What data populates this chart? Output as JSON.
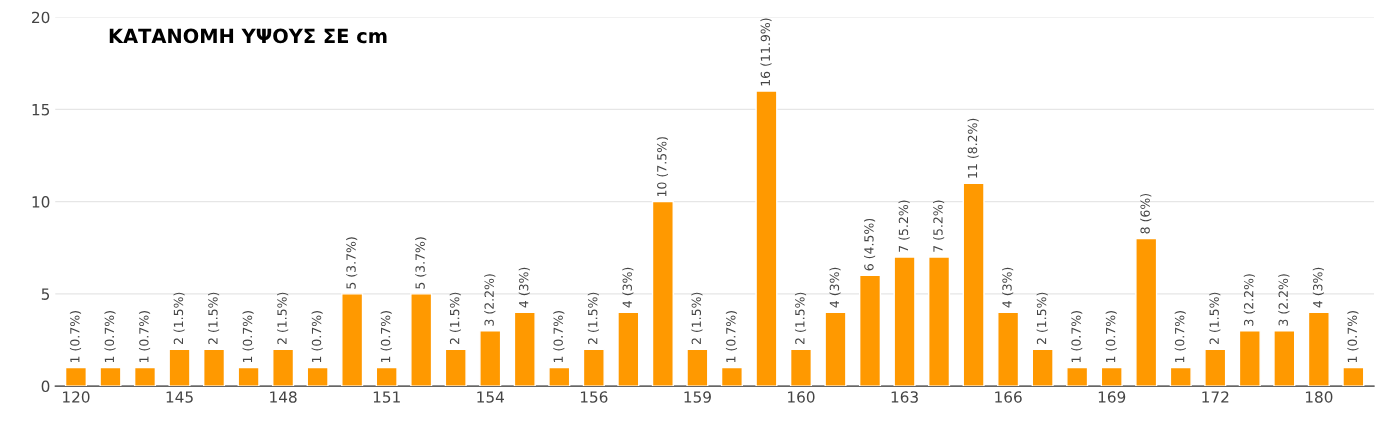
{
  "chart_data": {
    "type": "bar",
    "title": "ΚΑΤΑΝΟΜΗ ΥΨΟΥΣ ΣΕ cm",
    "categories": [
      "120",
      null,
      null,
      "145",
      null,
      null,
      "148",
      null,
      null,
      "151",
      null,
      null,
      "154",
      null,
      null,
      "156",
      null,
      null,
      "159",
      null,
      null,
      "160",
      null,
      null,
      "163",
      null,
      null,
      "166",
      null,
      null,
      "169",
      null,
      null,
      "172",
      null,
      null,
      "180",
      null
    ],
    "values": [
      1,
      1,
      1,
      2,
      2,
      1,
      2,
      1,
      5,
      1,
      5,
      2,
      3,
      4,
      1,
      2,
      4,
      10,
      2,
      1,
      16,
      2,
      4,
      6,
      7,
      7,
      11,
      4,
      2,
      1,
      1,
      8,
      1,
      2,
      3,
      3,
      4,
      1
    ],
    "value_labels": [
      "1 (0.7%)",
      "1 (0.7%)",
      "1 (0.7%)",
      "2 (1.5%)",
      "2 (1.5%)",
      "1 (0.7%)",
      "2 (1.5%)",
      "1 (0.7%)",
      "5 (3.7%)",
      "1 (0.7%)",
      "5 (3.7%)",
      "2 (1.5%)",
      "3 (2.2%)",
      "4 (3%)",
      "1 (0.7%)",
      "2 (1.5%)",
      "4 (3%)",
      "10 (7.5%)",
      "2 (1.5%)",
      "1 (0.7%)",
      "16 (11.9%)",
      "2 (1.5%)",
      "4 (3%)",
      "6 (4.5%)",
      "7 (5.2%)",
      "7 (5.2%)",
      "11 (8.2%)",
      "4 (3%)",
      "2 (1.5%)",
      "1 (0.7%)",
      "1 (0.7%)",
      "8 (6%)",
      "1 (0.7%)",
      "2 (1.5%)",
      "3 (2.2%)",
      "3 (2.2%)",
      "4 (3%)",
      "1 (0.7%)"
    ],
    "color": "#ff9900",
    "ylim": [
      0,
      20
    ],
    "yticks": [
      0,
      5,
      10,
      15,
      20
    ],
    "grid": "y"
  }
}
